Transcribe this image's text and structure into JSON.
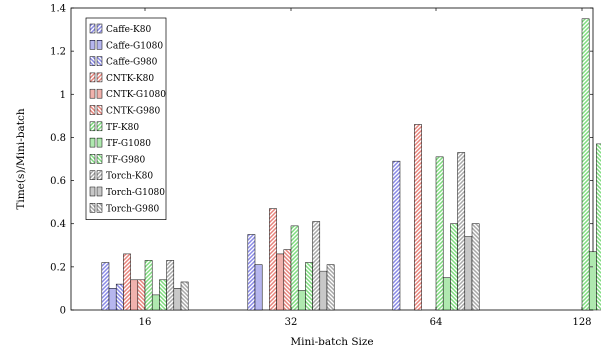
{
  "chart_data": {
    "type": "bar",
    "title": "",
    "xlabel": "Mini-batch Size",
    "ylabel": "Time(s)/Mini-batch",
    "categories": [
      "16",
      "32",
      "64",
      "128"
    ],
    "ylim": [
      0,
      1.4
    ],
    "yticks": [
      "0",
      "0.2",
      "0.4",
      "0.6",
      "0.8",
      "1",
      "1.2",
      "1.4"
    ],
    "grid": false,
    "legend_position": "top-left",
    "series": [
      {
        "name": "Caffe-K80",
        "color": "#8a8ae6",
        "hatch": "/",
        "values": [
          0.22,
          0.35,
          0.69,
          null
        ]
      },
      {
        "name": "Caffe-G1080",
        "color": "#8a8ae6",
        "hatch": "-",
        "values": [
          0.1,
          0.21,
          null,
          null
        ]
      },
      {
        "name": "Caffe-G980",
        "color": "#8a8ae6",
        "hatch": "\\",
        "values": [
          0.12,
          null,
          null,
          null
        ]
      },
      {
        "name": "CNTK-K80",
        "color": "#e8847c",
        "hatch": "/",
        "values": [
          0.26,
          0.47,
          0.86,
          null
        ]
      },
      {
        "name": "CNTK-G1080",
        "color": "#e8847c",
        "hatch": "-",
        "values": [
          0.14,
          0.26,
          null,
          null
        ]
      },
      {
        "name": "CNTK-G980",
        "color": "#e8847c",
        "hatch": "\\",
        "values": [
          0.14,
          0.28,
          null,
          null
        ]
      },
      {
        "name": "TF-K80",
        "color": "#7fdc7f",
        "hatch": "/",
        "values": [
          0.23,
          0.39,
          0.71,
          1.35
        ]
      },
      {
        "name": "TF-G1080",
        "color": "#7fdc7f",
        "hatch": "-",
        "values": [
          0.07,
          0.09,
          0.15,
          0.27
        ]
      },
      {
        "name": "TF-G980",
        "color": "#7fdc7f",
        "hatch": "\\",
        "values": [
          0.14,
          0.22,
          0.4,
          0.77
        ]
      },
      {
        "name": "Torch-K80",
        "color": "#a8a8a8",
        "hatch": "/",
        "values": [
          0.23,
          0.41,
          0.73,
          null
        ]
      },
      {
        "name": "Torch-G1080",
        "color": "#a8a8a8",
        "hatch": "-",
        "values": [
          0.1,
          0.18,
          0.34,
          null
        ]
      },
      {
        "name": "Torch-G980",
        "color": "#a8a8a8",
        "hatch": "\\",
        "values": [
          0.13,
          0.21,
          0.4,
          0.66
        ]
      }
    ]
  }
}
